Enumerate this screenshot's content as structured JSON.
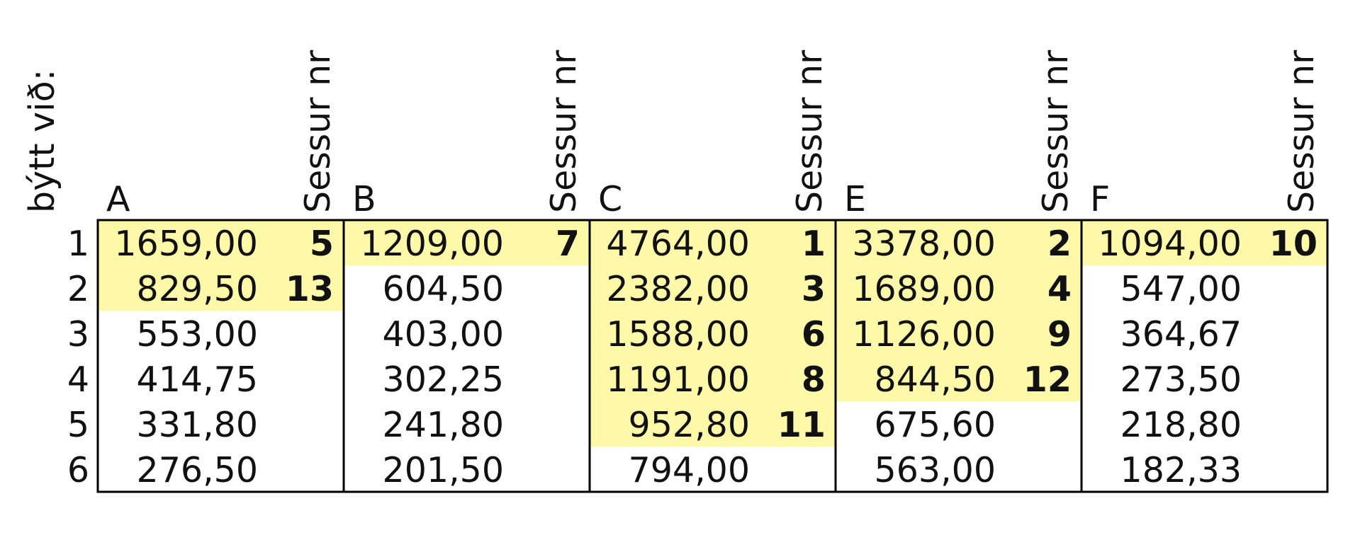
{
  "side_label": "býtt við:",
  "seat_header": "Sessur nr",
  "row_numbers": [
    "1",
    "2",
    "3",
    "4",
    "5",
    "6"
  ],
  "columns": [
    {
      "name": "A",
      "values": [
        "1659,00",
        "829,50",
        "553,00",
        "414,75",
        "331,80",
        "276,50"
      ],
      "seats": [
        "5",
        "13",
        null,
        null,
        null,
        null
      ]
    },
    {
      "name": "B",
      "values": [
        "1209,00",
        "604,50",
        "403,00",
        "302,25",
        "241,80",
        "201,50"
      ],
      "seats": [
        "7",
        null,
        null,
        null,
        null,
        null
      ]
    },
    {
      "name": "C",
      "values": [
        "4764,00",
        "2382,00",
        "1588,00",
        "1191,00",
        "952,80",
        "794,00"
      ],
      "seats": [
        "1",
        "3",
        "6",
        "8",
        "11",
        null
      ]
    },
    {
      "name": "E",
      "values": [
        "3378,00",
        "1689,00",
        "1126,00",
        "844,50",
        "675,60",
        "563,00"
      ],
      "seats": [
        "2",
        "4",
        "9",
        "12",
        null,
        null
      ]
    },
    {
      "name": "F",
      "values": [
        "1094,00",
        "547,00",
        "364,67",
        "273,50",
        "218,80",
        "182,33"
      ],
      "seats": [
        "10",
        null,
        null,
        null,
        null,
        null
      ]
    }
  ]
}
